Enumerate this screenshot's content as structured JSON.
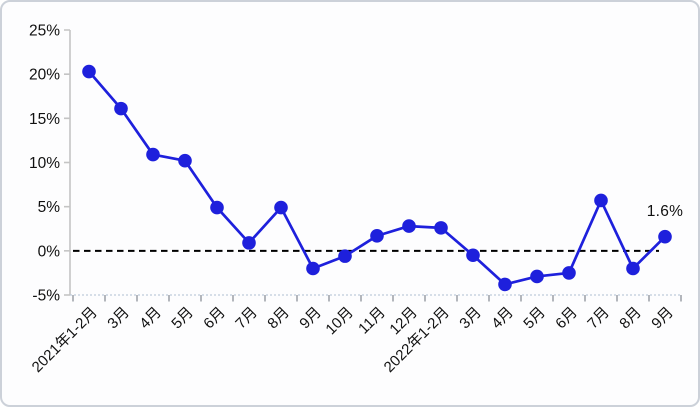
{
  "frame": {
    "background": "#fdfdfe",
    "border_color": "#ccd1d9"
  },
  "chart_data": {
    "type": "line",
    "title": "",
    "xlabel": "",
    "ylabel": "",
    "unit": "%",
    "categories": [
      "2021年1-2月",
      "3月",
      "4月",
      "5月",
      "6月",
      "7月",
      "8月",
      "9月",
      "10月",
      "11月",
      "12月",
      "2022年1-2月",
      "3月",
      "4月",
      "5月",
      "6月",
      "7月",
      "8月",
      "9月"
    ],
    "values": [
      20.3,
      16.1,
      10.9,
      10.2,
      4.9,
      0.9,
      4.9,
      -2.0,
      -0.6,
      1.7,
      2.8,
      2.6,
      -0.5,
      -3.8,
      -2.9,
      -2.5,
      5.7,
      -2.0,
      1.6
    ],
    "ylim": [
      -5,
      25
    ],
    "y_tick_values": [
      25,
      20,
      15,
      10,
      5,
      0,
      -5
    ],
    "y_tick_labels": [
      "25%",
      "20%",
      "15%",
      "10%",
      "5%",
      "0%",
      "-5%"
    ],
    "grid": false,
    "legend": "none",
    "marker": "circle",
    "line_color": "#1e20dc",
    "axis_color": "#c4c4c4",
    "x_axis_line_color": "#bfccdb",
    "x_tick_color": "#82878f",
    "text_color": "#111111",
    "zero_reference_line": {
      "style": "dashed",
      "color": "#000000"
    },
    "annotation": {
      "text": "1.6%",
      "target_index": 18
    }
  }
}
